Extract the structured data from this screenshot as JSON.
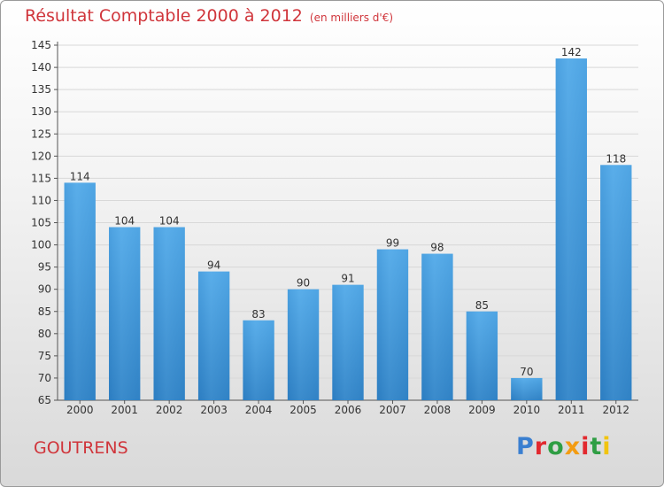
{
  "title": "Résultat Comptable 2000 à 2012",
  "unit_note": "(en milliers d'€)",
  "town": "GOUTRENS",
  "logo_text": "Proxiti",
  "logo_colors": [
    "#3a7fd0",
    "#e2292f",
    "#2f9e44",
    "#f39c12",
    "#e2292f",
    "#2f9e44",
    "#f1c40f"
  ],
  "colors": {
    "bar": "#4a9fe0",
    "bar_dark": "#2a78bb",
    "title": "#d0353b",
    "grid": "#d8d8d8"
  },
  "chart_data": {
    "type": "bar",
    "title": "Résultat Comptable 2000 à 2012",
    "xlabel": "",
    "ylabel": "(en milliers d'€)",
    "ylim": [
      65,
      145
    ],
    "yticks": [
      65,
      70,
      75,
      80,
      85,
      90,
      95,
      100,
      105,
      110,
      115,
      120,
      125,
      130,
      135,
      140,
      145
    ],
    "categories": [
      "2000",
      "2001",
      "2002",
      "2003",
      "2004",
      "2005",
      "2006",
      "2007",
      "2008",
      "2009",
      "2010",
      "2011",
      "2012"
    ],
    "values": [
      114,
      104,
      104,
      94,
      83,
      90,
      91,
      99,
      98,
      85,
      70,
      142,
      118
    ],
    "grid": true
  }
}
